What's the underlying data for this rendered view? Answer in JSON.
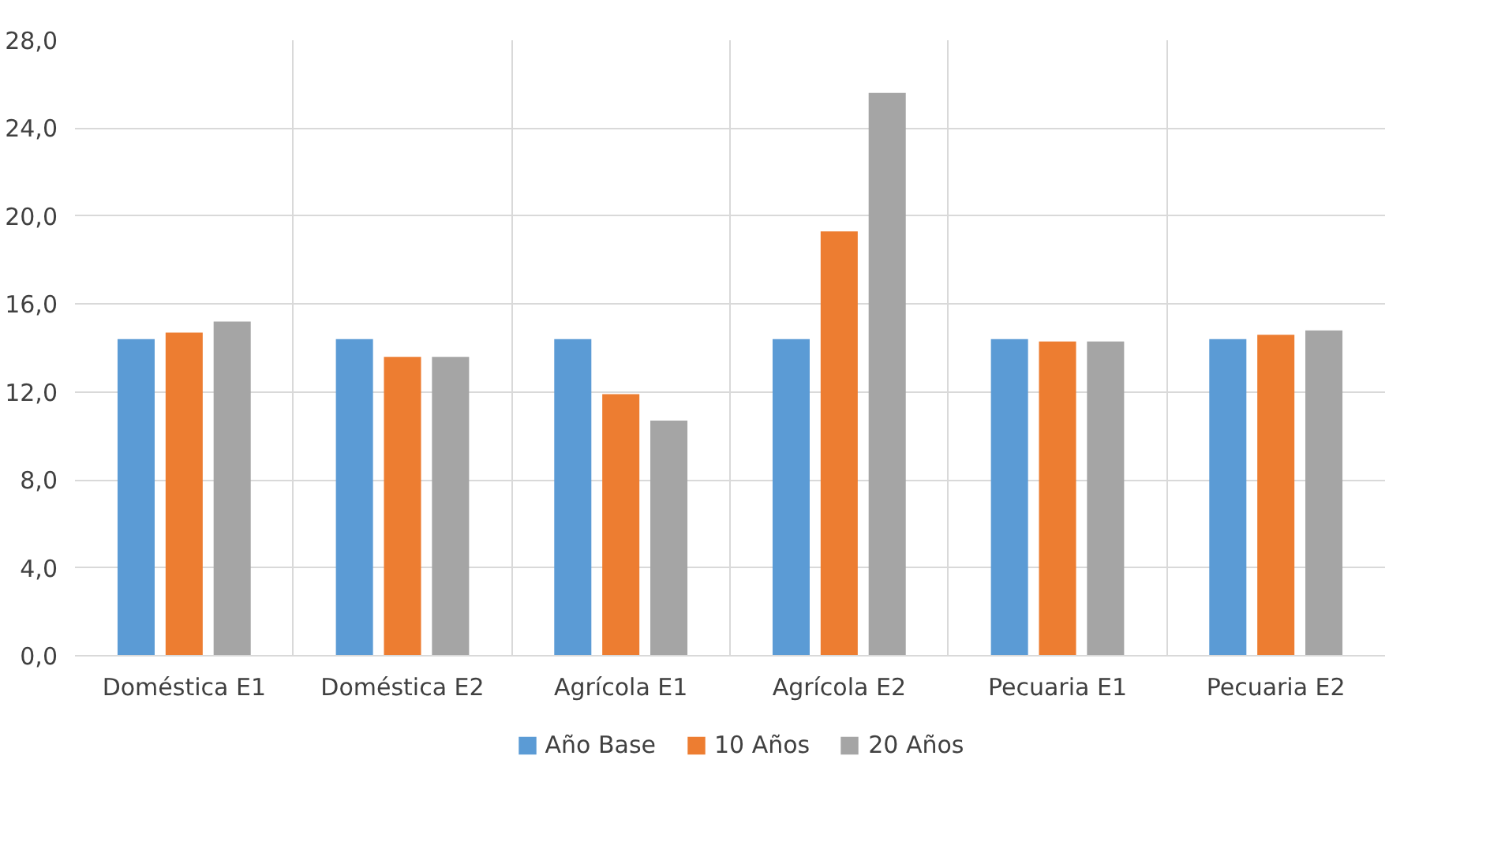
{
  "chart_data": {
    "type": "bar",
    "categories": [
      "Doméstica E1",
      "Doméstica E2",
      "Agrícola E1",
      "Agrícola E2",
      "Pecuaria E1",
      "Pecuaria E2"
    ],
    "series": [
      {
        "name": "Año Base",
        "color": "#5b9bd5",
        "values": [
          14.4,
          14.4,
          14.4,
          14.4,
          14.4,
          14.4
        ]
      },
      {
        "name": "10 Años",
        "color": "#ed7d31",
        "values": [
          14.7,
          13.6,
          11.9,
          19.3,
          14.3,
          14.6
        ]
      },
      {
        "name": "20 Años",
        "color": "#a5a5a5",
        "values": [
          15.2,
          13.6,
          10.7,
          25.6,
          14.3,
          14.8
        ]
      }
    ],
    "ylim": [
      0,
      28
    ],
    "yticks": [
      {
        "value": 0,
        "label": "0,0"
      },
      {
        "value": 4,
        "label": "4,0"
      },
      {
        "value": 8,
        "label": "8,0"
      },
      {
        "value": 12,
        "label": "12,0"
      },
      {
        "value": 16,
        "label": "16,0"
      },
      {
        "value": 20,
        "label": "20,0"
      },
      {
        "value": 24,
        "label": "24,0"
      },
      {
        "value": 28,
        "label": "28,0"
      }
    ],
    "grid": true,
    "legend": "bottom"
  }
}
